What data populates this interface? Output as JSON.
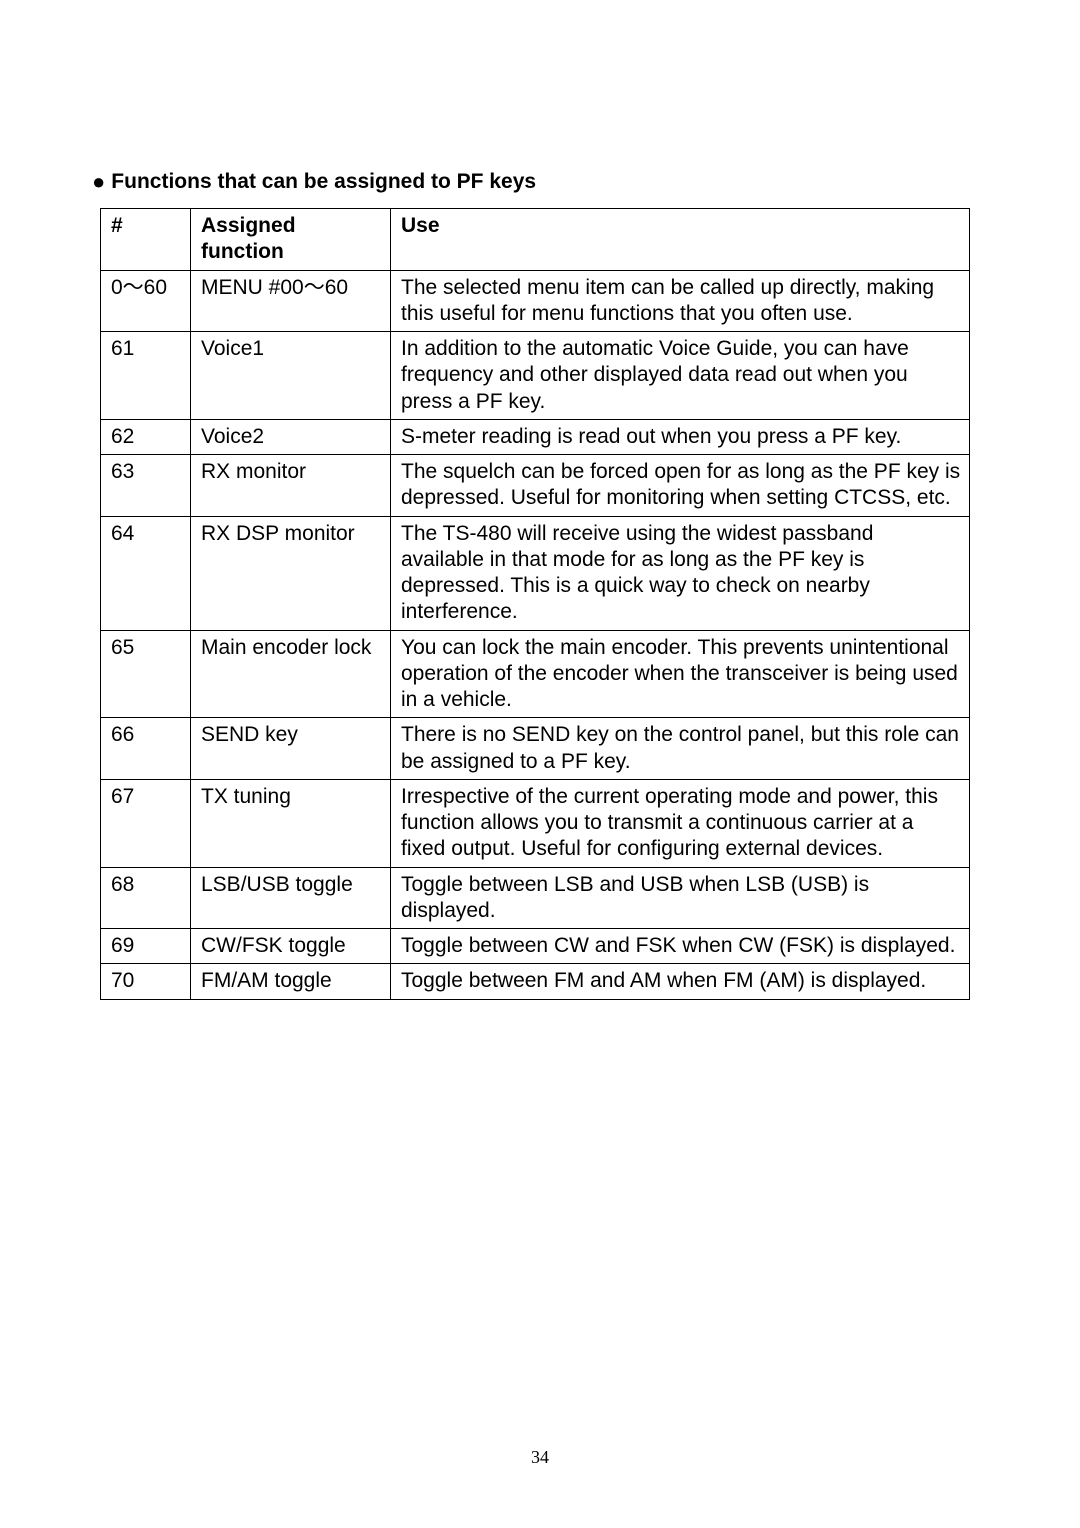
{
  "heading": "Functions that can be assigned to PF keys",
  "table": {
    "headers": {
      "num": "#",
      "func": "Assigned function",
      "use": "Use"
    },
    "rows": [
      {
        "num": "0～60",
        "func": "MENU #00～60",
        "use": "The selected menu item can be called up directly, making this useful for menu functions that you often use."
      },
      {
        "num": "61",
        "func": "Voice1",
        "use": "In addition to the automatic Voice Guide, you can have frequency and other displayed data read out when you press a PF key."
      },
      {
        "num": "62",
        "func": "Voice2",
        "use": "S-meter reading is read out when you press a PF key."
      },
      {
        "num": "63",
        "func": "RX monitor",
        "use": "The squelch can be forced open for as long as the PF key is depressed. Useful for monitoring when setting CTCSS, etc."
      },
      {
        "num": "64",
        "func": "RX DSP monitor",
        "use": "The TS-480 will receive using the widest passband available in that mode for as long as the PF key is depressed. This is a quick way to check on nearby interference."
      },
      {
        "num": "65",
        "func": "Main encoder lock",
        "use": "You can lock the main encoder. This prevents unintentional operation of the encoder when the transceiver is being used in a vehicle."
      },
      {
        "num": "66",
        "func": "SEND key",
        "use": "There is no SEND key on the control panel, but this role can be assigned to a PF key."
      },
      {
        "num": "67",
        "func": "TX tuning",
        "use": "Irrespective of the current operating mode and power, this function allows you to transmit a continuous carrier at a fixed output. Useful for configuring external devices."
      },
      {
        "num": "68",
        "func": "LSB/USB toggle",
        "use": "Toggle between LSB and USB when LSB (USB) is displayed."
      },
      {
        "num": "69",
        "func": "CW/FSK toggle",
        "use": "Toggle between CW and FSK when CW (FSK) is displayed."
      },
      {
        "num": "70",
        "func": "FM/AM toggle",
        "use": "Toggle between FM and AM when FM (AM) is displayed."
      }
    ]
  },
  "page_number": "34"
}
